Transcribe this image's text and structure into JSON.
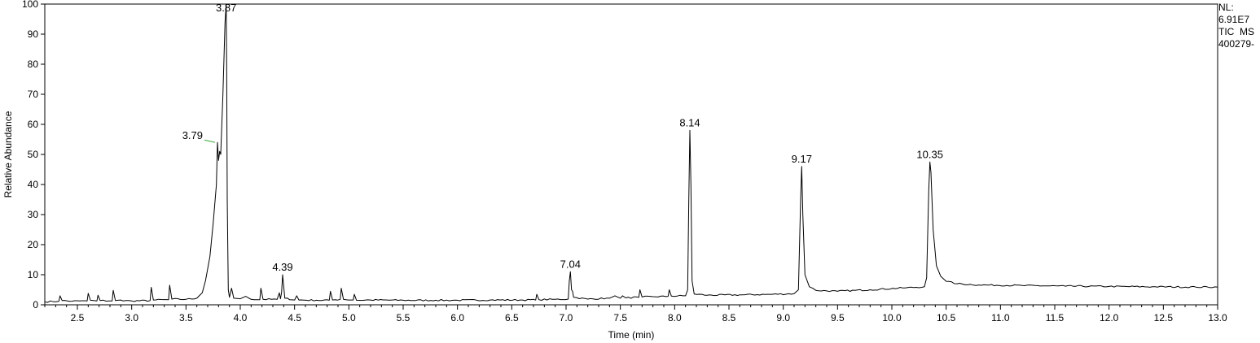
{
  "chart_data": {
    "type": "line",
    "xlabel": "Time (min)",
    "ylabel": "Relative Abundance",
    "xlim": [
      2.2,
      13.0
    ],
    "ylim": [
      0,
      100
    ],
    "x_ticks": [
      "2.5",
      "3.0",
      "3.5",
      "4.0",
      "4.5",
      "5.0",
      "5.5",
      "6.0",
      "6.5",
      "7.0",
      "7.5",
      "8.0",
      "8.5",
      "9.0",
      "9.5",
      "10.0",
      "10.5",
      "11.0",
      "11.5",
      "12.0",
      "12.5",
      "13.0"
    ],
    "y_ticks": [
      "0",
      "10",
      "20",
      "30",
      "40",
      "50",
      "60",
      "70",
      "80",
      "90",
      "100"
    ],
    "peak_labels": [
      {
        "x": 3.79,
        "y": 54,
        "text": "3.79"
      },
      {
        "x": 3.87,
        "y": 100,
        "text": "3.87"
      },
      {
        "x": 4.39,
        "y": 10,
        "text": "4.39"
      },
      {
        "x": 7.04,
        "y": 11,
        "text": "7.04"
      },
      {
        "x": 8.14,
        "y": 58,
        "text": "8.14"
      },
      {
        "x": 9.17,
        "y": 46,
        "text": "9.17"
      },
      {
        "x": 10.35,
        "y": 47.5,
        "text": "10.35"
      }
    ],
    "trace": [
      [
        2.2,
        1.0
      ],
      [
        2.33,
        1.2
      ],
      [
        2.34,
        3.0
      ],
      [
        2.36,
        1.4
      ],
      [
        2.45,
        1.2
      ],
      [
        2.59,
        1.3
      ],
      [
        2.6,
        3.8
      ],
      [
        2.62,
        1.5
      ],
      [
        2.68,
        1.3
      ],
      [
        2.69,
        3.2
      ],
      [
        2.71,
        1.4
      ],
      [
        2.82,
        1.3
      ],
      [
        2.83,
        4.8
      ],
      [
        2.85,
        1.4
      ],
      [
        2.9,
        1.6
      ],
      [
        2.92,
        1.3
      ],
      [
        3.0,
        1.3
      ],
      [
        3.17,
        1.4
      ],
      [
        3.18,
        5.8
      ],
      [
        3.2,
        1.6
      ],
      [
        3.34,
        1.7
      ],
      [
        3.35,
        6.5
      ],
      [
        3.37,
        1.9
      ],
      [
        3.5,
        1.8
      ],
      [
        3.6,
        2.2
      ],
      [
        3.65,
        4.0
      ],
      [
        3.68,
        8.0
      ],
      [
        3.72,
        16.0
      ],
      [
        3.75,
        27.0
      ],
      [
        3.78,
        40.0
      ],
      [
        3.79,
        54.0
      ],
      [
        3.8,
        48.0
      ],
      [
        3.81,
        51.0
      ],
      [
        3.82,
        50.0
      ],
      [
        3.84,
        70.0
      ],
      [
        3.86,
        94.0
      ],
      [
        3.87,
        100.0
      ],
      [
        3.875,
        80.0
      ],
      [
        3.88,
        35.0
      ],
      [
        3.89,
        5.0
      ],
      [
        3.9,
        2.5
      ],
      [
        3.92,
        5.5
      ],
      [
        3.94,
        2.2
      ],
      [
        4.0,
        2.0
      ],
      [
        4.05,
        2.8
      ],
      [
        4.1,
        1.8
      ],
      [
        4.18,
        1.7
      ],
      [
        4.19,
        5.5
      ],
      [
        4.21,
        1.8
      ],
      [
        4.34,
        1.8
      ],
      [
        4.36,
        4.0
      ],
      [
        4.37,
        2.0
      ],
      [
        4.38,
        4.0
      ],
      [
        4.39,
        10.0
      ],
      [
        4.41,
        2.2
      ],
      [
        4.5,
        1.6
      ],
      [
        4.52,
        3.0
      ],
      [
        4.54,
        1.6
      ],
      [
        4.7,
        1.5
      ],
      [
        4.82,
        1.5
      ],
      [
        4.83,
        4.5
      ],
      [
        4.85,
        1.6
      ],
      [
        4.92,
        1.8
      ],
      [
        4.93,
        5.5
      ],
      [
        4.95,
        1.8
      ],
      [
        5.04,
        1.6
      ],
      [
        5.05,
        3.5
      ],
      [
        5.07,
        1.5
      ],
      [
        5.2,
        1.6
      ],
      [
        5.5,
        1.5
      ],
      [
        5.8,
        1.5
      ],
      [
        6.0,
        1.5
      ],
      [
        6.3,
        1.6
      ],
      [
        6.6,
        1.6
      ],
      [
        6.72,
        1.6
      ],
      [
        6.73,
        3.5
      ],
      [
        6.75,
        1.7
      ],
      [
        6.9,
        1.8
      ],
      [
        7.02,
        1.9
      ],
      [
        7.03,
        8.0
      ],
      [
        7.04,
        11.0
      ],
      [
        7.05,
        5.0
      ],
      [
        7.06,
        4.5
      ],
      [
        7.07,
        2.5
      ],
      [
        7.2,
        1.9
      ],
      [
        7.4,
        2.2
      ],
      [
        7.45,
        3.0
      ],
      [
        7.5,
        2.2
      ],
      [
        7.52,
        3.0
      ],
      [
        7.55,
        2.3
      ],
      [
        7.67,
        2.5
      ],
      [
        7.68,
        5.0
      ],
      [
        7.7,
        2.6
      ],
      [
        7.8,
        2.7
      ],
      [
        7.94,
        2.8
      ],
      [
        7.95,
        5.0
      ],
      [
        7.97,
        2.9
      ],
      [
        8.1,
        3.0
      ],
      [
        8.12,
        5.0
      ],
      [
        8.13,
        35.0
      ],
      [
        8.14,
        58.0
      ],
      [
        8.15,
        40.0
      ],
      [
        8.16,
        8.0
      ],
      [
        8.18,
        3.6
      ],
      [
        8.3,
        3.2
      ],
      [
        8.6,
        3.3
      ],
      [
        8.9,
        3.5
      ],
      [
        9.1,
        3.7
      ],
      [
        9.14,
        5.0
      ],
      [
        9.16,
        35.0
      ],
      [
        9.17,
        46.0
      ],
      [
        9.18,
        30.0
      ],
      [
        9.2,
        10.0
      ],
      [
        9.24,
        6.0
      ],
      [
        9.3,
        4.8
      ],
      [
        9.5,
        4.5
      ],
      [
        9.8,
        5.0
      ],
      [
        10.1,
        5.6
      ],
      [
        10.3,
        6.0
      ],
      [
        10.32,
        9.0
      ],
      [
        10.34,
        38.0
      ],
      [
        10.35,
        47.5
      ],
      [
        10.36,
        44.0
      ],
      [
        10.38,
        25.0
      ],
      [
        10.41,
        13.0
      ],
      [
        10.45,
        9.5
      ],
      [
        10.5,
        7.8
      ],
      [
        10.6,
        7.0
      ],
      [
        10.8,
        6.6
      ],
      [
        11.2,
        6.4
      ],
      [
        11.6,
        6.2
      ],
      [
        12.0,
        6.1
      ],
      [
        12.4,
        6.0
      ],
      [
        12.8,
        5.9
      ],
      [
        13.0,
        5.9
      ]
    ],
    "annotation_line_color": "#2ca02c",
    "grid": false,
    "legend": "none"
  },
  "info_box": {
    "nl_label": "NL:",
    "nl_value": "6.91E7",
    "trace_type": "TIC  MS",
    "sample_id": "400279-"
  }
}
